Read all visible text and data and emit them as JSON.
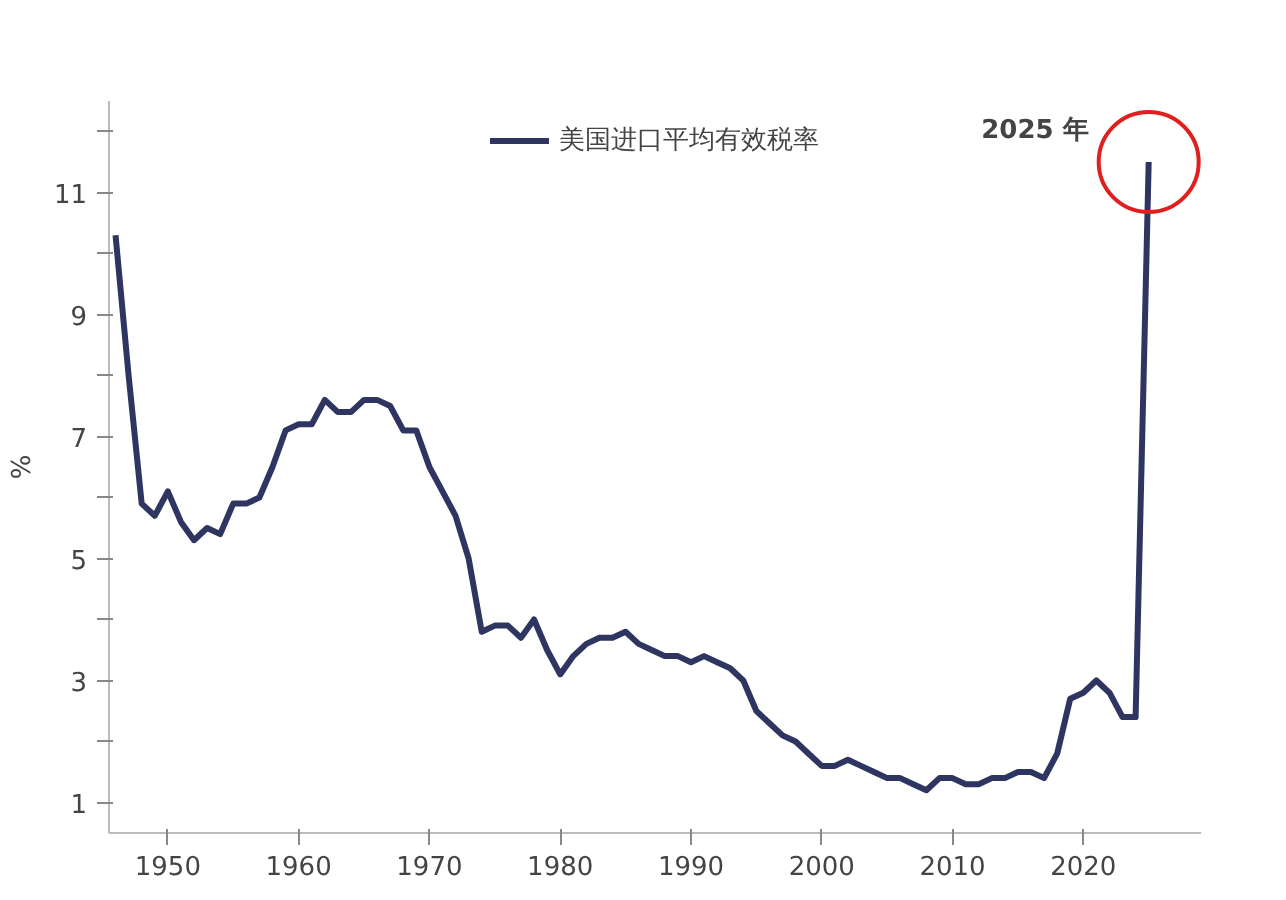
{
  "chart_data": {
    "type": "line",
    "ylabel": "%",
    "legend": "top",
    "grid": false,
    "x": [
      1946,
      1947,
      1948,
      1949,
      1950,
      1951,
      1952,
      1953,
      1954,
      1955,
      1956,
      1957,
      1958,
      1959,
      1960,
      1961,
      1962,
      1963,
      1964,
      1965,
      1966,
      1967,
      1968,
      1969,
      1970,
      1971,
      1972,
      1973,
      1974,
      1975,
      1976,
      1977,
      1978,
      1979,
      1980,
      1981,
      1982,
      1983,
      1984,
      1985,
      1986,
      1987,
      1988,
      1989,
      1990,
      1991,
      1992,
      1993,
      1994,
      1995,
      1996,
      1997,
      1998,
      1999,
      2000,
      2001,
      2002,
      2003,
      2004,
      2005,
      2006,
      2007,
      2008,
      2009,
      2010,
      2011,
      2012,
      2013,
      2014,
      2015,
      2016,
      2017,
      2018,
      2019,
      2020,
      2021,
      2022,
      2023,
      2024,
      2025
    ],
    "series": [
      {
        "name": "美国进口平均有效税率",
        "color": "#2e3560",
        "values": [
          10.3,
          8.0,
          5.9,
          5.7,
          6.1,
          5.6,
          5.3,
          5.5,
          5.4,
          5.9,
          5.9,
          6.0,
          6.5,
          7.1,
          7.2,
          7.2,
          7.6,
          7.4,
          7.4,
          7.6,
          7.6,
          7.5,
          7.1,
          7.1,
          6.5,
          6.1,
          5.7,
          5.0,
          3.8,
          3.9,
          3.9,
          3.7,
          4.0,
          3.5,
          3.1,
          3.4,
          3.6,
          3.7,
          3.7,
          3.8,
          3.6,
          3.5,
          3.4,
          3.4,
          3.3,
          3.4,
          3.3,
          3.2,
          3.0,
          2.5,
          2.3,
          2.1,
          2.0,
          1.8,
          1.6,
          1.6,
          1.7,
          1.6,
          1.5,
          1.4,
          1.4,
          1.3,
          1.2,
          1.4,
          1.4,
          1.3,
          1.3,
          1.4,
          1.4,
          1.5,
          1.5,
          1.4,
          1.8,
          2.7,
          2.8,
          3.0,
          2.8,
          2.4,
          2.4,
          11.5
        ]
      }
    ],
    "xlim": [
      1945.5,
      2029
    ],
    "xticks": [
      1950,
      1960,
      1970,
      1980,
      1990,
      2000,
      2010,
      2020
    ],
    "ylim": [
      0.5,
      12.5
    ],
    "yticks": [
      1,
      {
        "value": 2,
        "label": null
      },
      3,
      {
        "value": 4,
        "label": null
      },
      5,
      {
        "value": 6,
        "label": null
      },
      7,
      {
        "value": 8,
        "label": null
      },
      9,
      {
        "value": 10,
        "label": null
      },
      11,
      {
        "value": 12,
        "label": null
      }
    ],
    "annotations": [
      {
        "text": "2025 年",
        "x": 2025,
        "y": 11.5
      }
    ]
  }
}
